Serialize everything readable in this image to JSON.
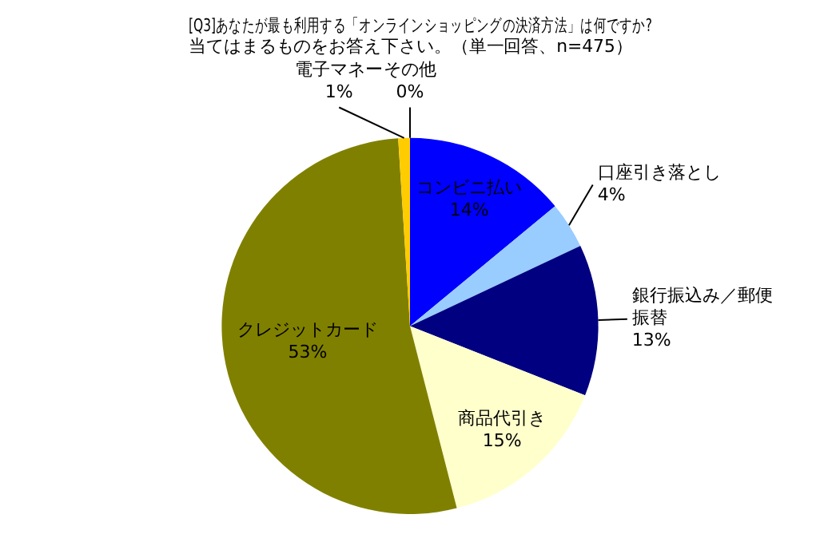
{
  "chart_data": {
    "type": "pie",
    "title": "[Q3]あなたが最も利用する「オンラインショッピングの決済方法」は何ですか?\n当てはまるものをお答え下さい。（単一回答、n=475）",
    "categories": [
      "コンビニ払い",
      "口座引き落とし",
      "銀行振込み／郵便振替",
      "商品代引き",
      "クレジットカード",
      "電子マネー",
      "その他"
    ],
    "values": [
      14,
      4,
      13,
      15,
      53,
      1,
      0
    ],
    "value_labels": [
      "14%",
      "4%",
      "13%",
      "15%",
      "53%",
      "1%",
      "0%"
    ],
    "colors": [
      "#0000ff",
      "#99ccff",
      "#000080",
      "#ffffcc",
      "#808000",
      "#ffcc00",
      "#ff0000"
    ],
    "legend": false
  }
}
